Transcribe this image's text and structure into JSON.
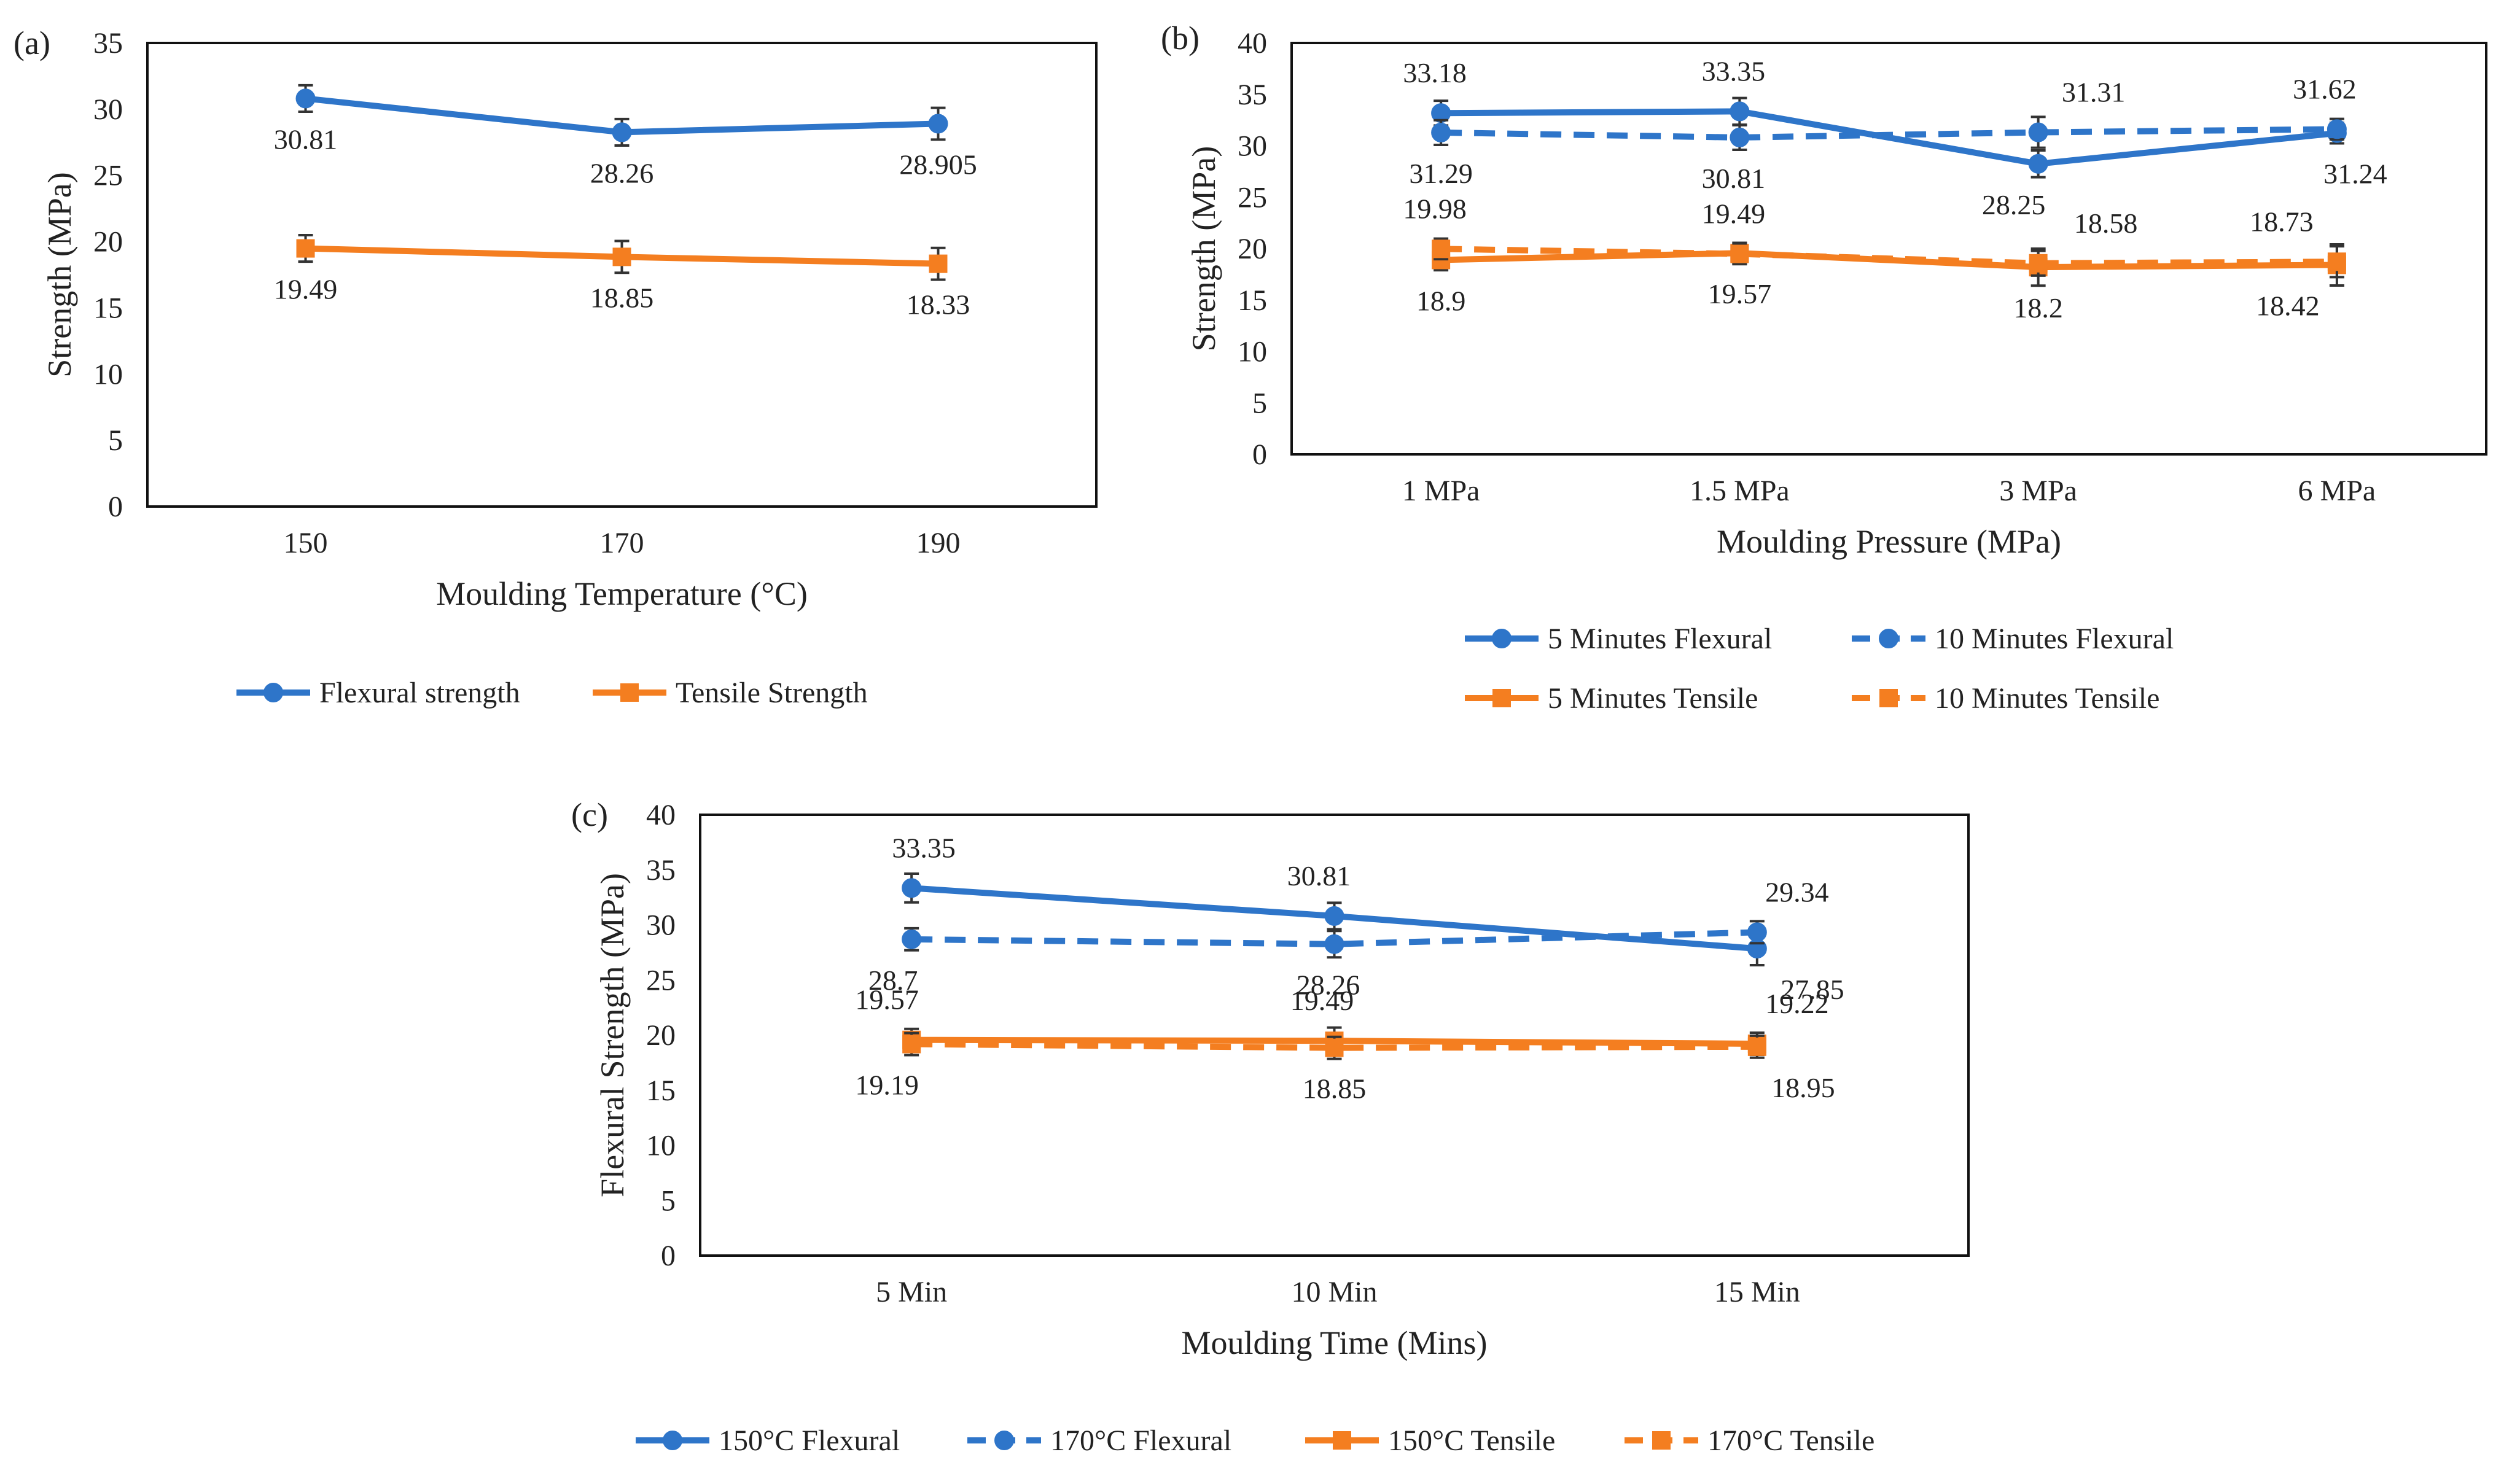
{
  "colors": {
    "flexural": "#2E75C9",
    "tensile": "#F47E20",
    "frame": "#111111",
    "text": "#222222"
  },
  "chart_data": [
    {
      "panel": "(a)",
      "type": "line",
      "xlabel": "Moulding Temperature (°C)",
      "ylabel": "Strength (MPa)",
      "categories": [
        "150",
        "170",
        "190"
      ],
      "ylim": [
        0,
        35
      ],
      "yticks": [
        "0",
        "5",
        "10",
        "15",
        "20",
        "25",
        "30",
        "35"
      ],
      "grid": false,
      "legend_position": "bottom",
      "series": [
        {
          "name": "Flexural strength",
          "values": [
            30.81,
            28.26,
            28.905
          ],
          "labels": [
            "30.81",
            "28.26",
            "28.905"
          ],
          "label_pos": [
            "below",
            "below",
            "below"
          ],
          "errors": [
            1.0,
            1.0,
            1.2
          ],
          "color": "flexural",
          "dash": false,
          "marker": "circle"
        },
        {
          "name": "Tensile Strength",
          "values": [
            19.49,
            18.85,
            18.33
          ],
          "labels": [
            "19.49",
            "18.85",
            "18.33"
          ],
          "label_pos": [
            "below",
            "below",
            "below"
          ],
          "errors": [
            1.0,
            1.2,
            1.2
          ],
          "color": "tensile",
          "dash": false,
          "marker": "square"
        }
      ]
    },
    {
      "panel": "(b)",
      "type": "line",
      "xlabel": "Moulding Pressure (MPa)",
      "ylabel": "Strength (MPa)",
      "categories": [
        "1 MPa",
        "1.5 MPa",
        "3 MPa",
        "6 MPa"
      ],
      "ylim": [
        0,
        40
      ],
      "yticks": [
        "0",
        "5",
        "10",
        "15",
        "20",
        "25",
        "30",
        "35",
        "40"
      ],
      "grid": false,
      "legend_position": "bottom",
      "series": [
        {
          "name": "5 Minutes Flexural",
          "values": [
            33.18,
            33.35,
            28.25,
            31.24
          ],
          "labels": [
            "33.18",
            "33.35",
            "28.25",
            "31.24"
          ],
          "label_pos": [
            "above",
            "above",
            "below",
            "below"
          ],
          "errors": [
            1.2,
            1.3,
            1.3,
            1.0
          ],
          "color": "flexural",
          "dash": false,
          "marker": "circle"
        },
        {
          "name": "10 Minutes Flexural",
          "values": [
            31.29,
            30.81,
            31.31,
            31.62
          ],
          "labels": [
            "31.29",
            "30.81",
            "31.31",
            "31.62"
          ],
          "label_pos": [
            "below",
            "below",
            "above",
            "above"
          ],
          "errors": [
            1.2,
            1.2,
            1.5,
            1.0
          ],
          "color": "flexural",
          "dash": true,
          "marker": "circle"
        },
        {
          "name": "5 Minutes Tensile",
          "values": [
            18.9,
            19.57,
            18.2,
            18.42
          ],
          "labels": [
            "18.9",
            "19.57",
            "18.2",
            "18.42"
          ],
          "label_pos": [
            "below",
            "below",
            "below",
            "below"
          ],
          "errors": [
            1.0,
            1.0,
            1.8,
            2.0
          ],
          "color": "tensile",
          "dash": false,
          "marker": "square"
        },
        {
          "name": "10 Minutes Tensile",
          "values": [
            19.98,
            19.49,
            18.58,
            18.73
          ],
          "labels": [
            "19.98",
            "19.49",
            "18.58",
            "18.73"
          ],
          "label_pos": [
            "above",
            "above",
            "above",
            "above"
          ],
          "errors": [
            1.0,
            1.0,
            1.2,
            1.5
          ],
          "color": "tensile",
          "dash": true,
          "marker": "square"
        }
      ]
    },
    {
      "panel": "(c)",
      "type": "line",
      "xlabel": "Moulding Time (Mins)",
      "ylabel": "Flexural Strength (MPa)",
      "categories": [
        "5 Min",
        "10 Min",
        "15 Min"
      ],
      "ylim": [
        0,
        40
      ],
      "yticks": [
        "0",
        "5",
        "10",
        "15",
        "20",
        "25",
        "30",
        "35",
        "40"
      ],
      "grid": false,
      "legend_position": "bottom",
      "series": [
        {
          "name": "150°C Flexural",
          "values": [
            33.35,
            30.81,
            27.85
          ],
          "labels": [
            "33.35",
            "30.81",
            "27.85"
          ],
          "label_pos": [
            "above",
            "above",
            "below"
          ],
          "errors": [
            1.3,
            1.2,
            1.5
          ],
          "color": "flexural",
          "dash": false,
          "marker": "circle"
        },
        {
          "name": "170°C  Flexural",
          "values": [
            28.7,
            28.26,
            29.34
          ],
          "labels": [
            "28.7",
            "28.26",
            "29.34"
          ],
          "label_pos": [
            "below",
            "below",
            "above"
          ],
          "errors": [
            1.0,
            1.2,
            1.0
          ],
          "color": "flexural",
          "dash": true,
          "marker": "circle"
        },
        {
          "name": "150°C Tensile",
          "values": [
            19.57,
            19.49,
            19.22
          ],
          "labels": [
            "19.57",
            "19.49",
            "19.22"
          ],
          "label_pos": [
            "above",
            "above",
            "above"
          ],
          "errors": [
            1.0,
            1.2,
            1.0
          ],
          "color": "tensile",
          "dash": false,
          "marker": "square"
        },
        {
          "name": "170°C  Tensile",
          "values": [
            19.19,
            18.85,
            18.95
          ],
          "labels": [
            "19.19",
            "18.85",
            "18.95"
          ],
          "label_pos": [
            "below",
            "below",
            "below"
          ],
          "errors": [
            1.0,
            1.0,
            1.0
          ],
          "color": "tensile",
          "dash": true,
          "marker": "square"
        }
      ]
    }
  ]
}
